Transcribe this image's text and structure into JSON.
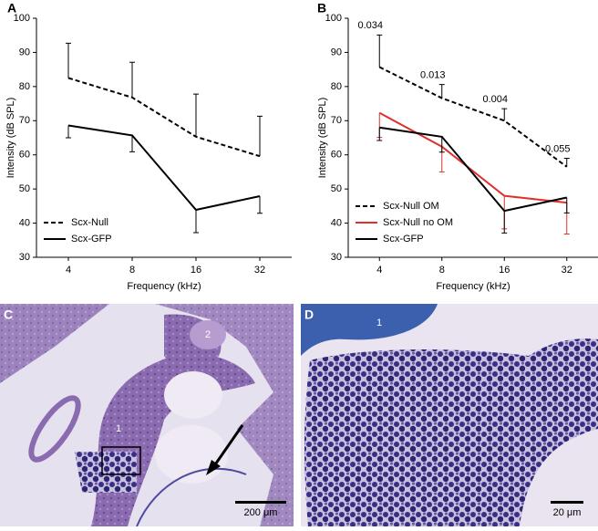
{
  "chart_data": [
    {
      "type": "line",
      "panel": "A",
      "ylabel": "Intensity (dB SPL)",
      "xlabel": "Frequency (kHz)",
      "categories": [
        "4",
        "8",
        "16",
        "32"
      ],
      "ylim": [
        30,
        100
      ],
      "yticks": [
        30,
        40,
        50,
        60,
        70,
        80,
        90,
        100
      ],
      "legend": "lower left",
      "series": [
        {
          "name": "Scx-Null",
          "color": "#000000",
          "dashed": true,
          "values": [
            82.5,
            76.8,
            65.3,
            59.6
          ],
          "errors": [
            10.2,
            10.3,
            12.5,
            11.7
          ],
          "error_direction": "up"
        },
        {
          "name": "Scx-GFP",
          "color": "#000000",
          "dashed": false,
          "values": [
            68.6,
            65.7,
            43.9,
            47.9
          ],
          "errors": [
            3.6,
            4.8,
            6.7,
            5
          ]
        }
      ]
    },
    {
      "type": "line",
      "panel": "B",
      "ylabel": "Intensity (dB SPL)",
      "xlabel": "Frequency (kHz)",
      "categories": [
        "4",
        "8",
        "16",
        "32"
      ],
      "ylim": [
        30,
        100
      ],
      "yticks": [
        30,
        40,
        50,
        60,
        70,
        80,
        90,
        100
      ],
      "legend": "lower left",
      "annotations": [
        "0.034",
        "0.013",
        "0.004",
        "0.055"
      ],
      "series": [
        {
          "name": "Scx-Null OM",
          "color": "#000000",
          "dashed": true,
          "values": [
            85.7,
            76.6,
            70,
            56.5
          ],
          "errors": [
            9.4,
            4,
            3.5,
            2.5
          ],
          "error_direction": "up"
        },
        {
          "name": "Scx-Null no OM",
          "color": "#e0302b",
          "dashed": false,
          "values": [
            72.3,
            62.4,
            48,
            46
          ],
          "errors": [
            7.2,
            7.4,
            9.7,
            9.2
          ]
        },
        {
          "name": "Scx-GFP",
          "color": "#000000",
          "dashed": false,
          "values": [
            68,
            65.3,
            43.6,
            47.5
          ],
          "errors": [
            3.8,
            4.5,
            6.5,
            4.5
          ]
        }
      ]
    }
  ],
  "images": [
    {
      "panel": "C",
      "labels": [
        "1",
        "2"
      ],
      "scale_bar": "200 μm"
    },
    {
      "panel": "D",
      "labels": [
        "1"
      ],
      "scale_bar": "20 μm"
    }
  ]
}
